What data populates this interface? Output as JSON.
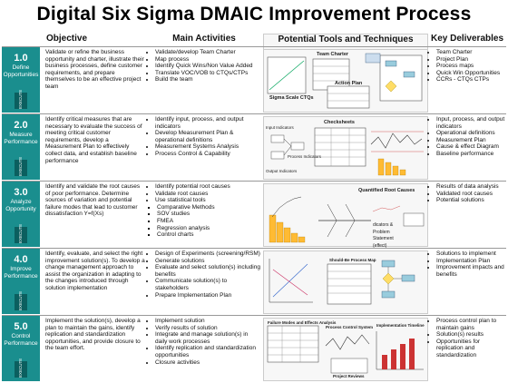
{
  "title": "Digital Six Sigma DMAIC Improvement Process",
  "headers": {
    "objective": "Objective",
    "activities": "Main Activities",
    "tools": "Potential Tools and Techniques",
    "deliverables": "Key Deliverables"
  },
  "phases": [
    {
      "num": "1.0",
      "name": "Define Opportunities",
      "exec": "EXECUTE",
      "objective": "Validate or refine the business opportunity and charter, illustrate their business processes, define customer requirements, and prepare themselves to be an effective project team",
      "activities": [
        "Validate/develop Team Charter",
        "Map process",
        "Identify Quick Wins/Non Value Added",
        "Translate VOC/VOB to CTQs/CTPs",
        "Build the team"
      ],
      "tool_labels": [
        "Team Charter",
        "Action Plan",
        "Sigma Scale CTQs"
      ],
      "deliverables": [
        "Team Charter",
        "Project Plan",
        "Process maps",
        "Quick Win Opportunities",
        "CCRs - CTQs CTPs"
      ]
    },
    {
      "num": "2.0",
      "name": "Measure Performance",
      "exec": "EXECUTE",
      "objective": "Identify critical measures that are necessary to evaluate the success of meeting critical customer requirements, develop a Measurement Plan to effectively collect data, and establish baseline performance",
      "activities": [
        "Identify input, process, and output indicators",
        "Develop Measurement Plan & operational definitions",
        "Measurement Systems Analysis",
        "Process Control & Capability"
      ],
      "tool_labels": [
        "Checksheets",
        "Input Indicators",
        "Process Indicators",
        "Output Indicators"
      ],
      "deliverables": [
        "Input, process, and output indicators",
        "Operational definitions",
        "Measurement Plan",
        "Cause & effect Diagram",
        "Baseline performance"
      ]
    },
    {
      "num": "3.0",
      "name": "Analyze Opportunity",
      "exec": "EXECUTE",
      "objective": "Identify and validate the root causes of poor performance. Determine sources of variation and potential failure modes that lead to customer dissatisfaction   Y=f(Xs)",
      "activities": [
        "Identify potential root causes",
        "Validate root causes",
        "Use statistical tools"
      ],
      "sub_activities": [
        "Comparative Methods",
        "SOV studies",
        "FMEA",
        "Regression analysis",
        "Control charts"
      ],
      "tool_labels": [
        "Quantified Root Causes",
        "dicators & Problem Statement (effect)"
      ],
      "deliverables": [
        "Results of data analysis",
        "Validated root causes",
        "Potential solutions"
      ]
    },
    {
      "num": "4.0",
      "name": "Improve Performance",
      "exec": "EXECUTE",
      "objective": "Identify, evaluate, and select the right improvement solution(s). To develop a change management approach to assist the organization in adapting to the changes introduced through solution implementation",
      "activities": [
        "Design of Experiments (screening/RSM)",
        "Generate solutions",
        "Evaluate and select solution(s) including benefits",
        "Communicate solution(s) to stakeholders",
        "Prepare Implementation Plan"
      ],
      "tool_labels": [
        "Should-Be Process Map"
      ],
      "deliverables": [
        "Solutions to implement",
        "Implementation Plan",
        "Improvement impacts and benefits"
      ]
    },
    {
      "num": "5.0",
      "name": "Control Performance",
      "exec": "EXECUTE",
      "objective": "Implement the solution(s), develop a plan to maintain the gains, identify replication and standardization opportunities, and provide closure to the team effort.",
      "activities": [
        "Implement solution",
        "Verify results of solution",
        "Integrate and manage solution(s) in daily work processes",
        "Identify replication and standardization opportunities",
        "Closure activities"
      ],
      "tool_labels": [
        "Failure Modes and Effects Analysis",
        "Process Control System",
        "Project Reviews",
        "Implementation Timeline"
      ],
      "deliverables": [
        "Process control plan to maintain gains",
        "Solution(s) results",
        "Opportunities for replication and standardization"
      ]
    }
  ]
}
